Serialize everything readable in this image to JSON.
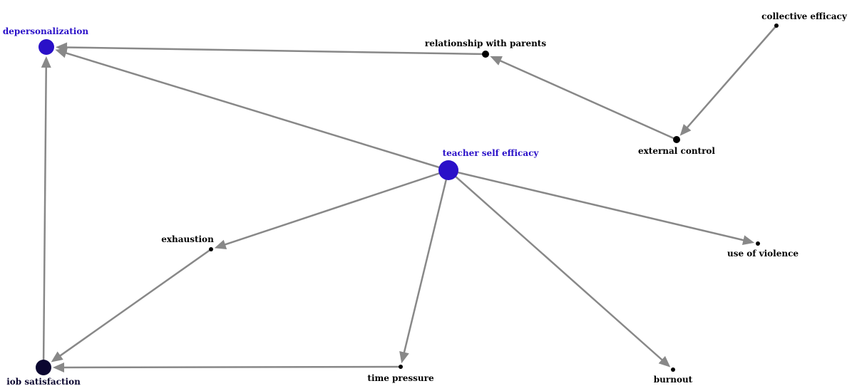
{
  "graph": {
    "nodes": [
      {
        "id": "depersonalization",
        "label": "depersonalization",
        "color": "#2a10c8",
        "label_color": "#2a10c8",
        "size": "large"
      },
      {
        "id": "relationship_with_parents",
        "label": "relationship with parents",
        "color": "#000000",
        "label_color": "#000000",
        "size": "medium"
      },
      {
        "id": "collective_efficacy",
        "label": "collective efficacy",
        "color": "#000000",
        "label_color": "#000000",
        "size": "small"
      },
      {
        "id": "external_control",
        "label": "external control",
        "color": "#000000",
        "label_color": "#000000",
        "size": "medium"
      },
      {
        "id": "teacher_self_efficacy",
        "label": "teacher self efficacy",
        "color": "#2a10c8",
        "label_color": "#2a10c8",
        "size": "xlarge"
      },
      {
        "id": "exhaustion",
        "label": "exhaustion",
        "color": "#000000",
        "label_color": "#000000",
        "size": "small"
      },
      {
        "id": "use_of_violence",
        "label": "use of violence",
        "color": "#000000",
        "label_color": "#000000",
        "size": "small"
      },
      {
        "id": "job_satisfaction",
        "label": "iob satisfaction",
        "color": "#0b0630",
        "label_color": "#0b0630",
        "size": "large"
      },
      {
        "id": "time_pressure",
        "label": "time pressure",
        "color": "#000000",
        "label_color": "#000000",
        "size": "small"
      },
      {
        "id": "burnout",
        "label": "burnout",
        "color": "#000000",
        "label_color": "#000000",
        "size": "small"
      }
    ],
    "edges": [
      {
        "from": "relationship_with_parents",
        "to": "depersonalization"
      },
      {
        "from": "teacher_self_efficacy",
        "to": "depersonalization"
      },
      {
        "from": "job_satisfaction",
        "to": "depersonalization"
      },
      {
        "from": "external_control",
        "to": "relationship_with_parents"
      },
      {
        "from": "collective_efficacy",
        "to": "external_control"
      },
      {
        "from": "teacher_self_efficacy",
        "to": "exhaustion"
      },
      {
        "from": "teacher_self_efficacy",
        "to": "use_of_violence"
      },
      {
        "from": "teacher_self_efficacy",
        "to": "time_pressure"
      },
      {
        "from": "teacher_self_efficacy",
        "to": "burnout"
      },
      {
        "from": "exhaustion",
        "to": "job_satisfaction"
      },
      {
        "from": "time_pressure",
        "to": "job_satisfaction"
      }
    ],
    "edge_color": "#888888"
  }
}
